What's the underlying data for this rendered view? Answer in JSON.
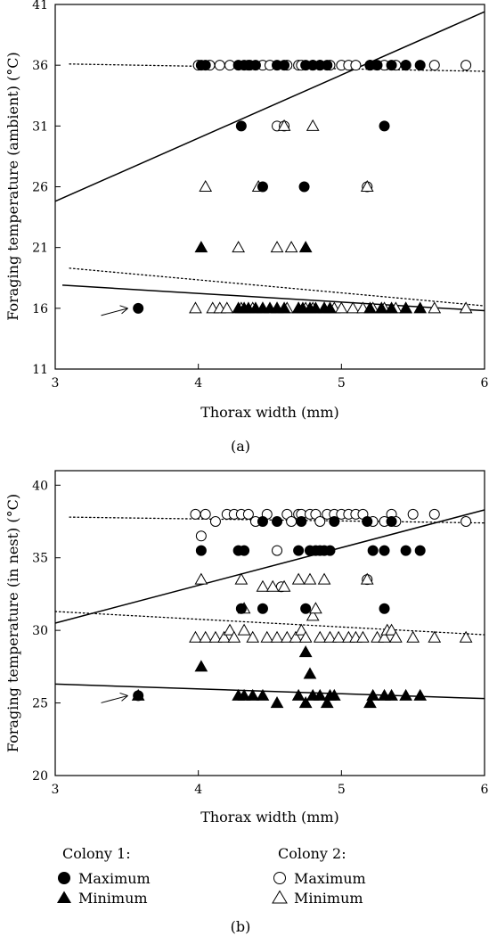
{
  "figure": {
    "panels": [
      {
        "label": "(a)",
        "xlabel": "Thorax width (mm)",
        "ylabel": "Foraging temperature (ambient) (°C)"
      },
      {
        "label": "(b)",
        "xlabel": "Thorax width (mm)",
        "ylabel": "Foraging temperature (in nest) (°C)"
      }
    ],
    "legend": {
      "colony1_title": "Colony 1:",
      "colony2_title": "Colony 2:",
      "c1_max": "Maximum",
      "c1_min": "Minimum",
      "c2_max": "Maximum",
      "c2_min": "Minimum"
    }
  },
  "chart_data": [
    {
      "type": "scatter",
      "label": "(a)",
      "xlabel": "Thorax width (mm)",
      "ylabel": "Foraging temperature (ambient) (°C)",
      "xlim": [
        3,
        6
      ],
      "ylim": [
        11,
        41
      ],
      "xticks": [
        3,
        4,
        5,
        6
      ],
      "yticks": [
        11,
        16,
        21,
        26,
        31,
        36,
        41
      ],
      "series": [
        {
          "key": "c1max",
          "points": [
            [
              3.58,
              16
            ],
            [
              4.02,
              36
            ],
            [
              4.05,
              36
            ],
            [
              4.28,
              36
            ],
            [
              4.3,
              31
            ],
            [
              4.32,
              36
            ],
            [
              4.36,
              36
            ],
            [
              4.4,
              36
            ],
            [
              4.45,
              26
            ],
            [
              4.55,
              36
            ],
            [
              4.6,
              36
            ],
            [
              4.74,
              26
            ],
            [
              4.75,
              36
            ],
            [
              4.8,
              36
            ],
            [
              4.85,
              36
            ],
            [
              4.9,
              36
            ],
            [
              5.2,
              36
            ],
            [
              5.25,
              36
            ],
            [
              5.3,
              31
            ],
            [
              5.35,
              36
            ],
            [
              5.45,
              36
            ],
            [
              5.55,
              36
            ]
          ]
        },
        {
          "key": "c1min",
          "points": [
            [
              4.02,
              21
            ],
            [
              4.28,
              16
            ],
            [
              4.32,
              16
            ],
            [
              4.35,
              16
            ],
            [
              4.4,
              16
            ],
            [
              4.45,
              16
            ],
            [
              4.5,
              16
            ],
            [
              4.55,
              16
            ],
            [
              4.6,
              16
            ],
            [
              4.7,
              16
            ],
            [
              4.73,
              16
            ],
            [
              4.75,
              21
            ],
            [
              4.78,
              16
            ],
            [
              4.82,
              16
            ],
            [
              4.88,
              16
            ],
            [
              4.92,
              16
            ],
            [
              5.2,
              16
            ],
            [
              5.28,
              16
            ],
            [
              5.35,
              16
            ],
            [
              5.45,
              16
            ],
            [
              5.55,
              16
            ]
          ]
        },
        {
          "key": "c2max",
          "points": [
            [
              4.0,
              36
            ],
            [
              4.08,
              36
            ],
            [
              4.15,
              36
            ],
            [
              4.22,
              36
            ],
            [
              4.35,
              36
            ],
            [
              4.45,
              36
            ],
            [
              4.5,
              36
            ],
            [
              4.55,
              31
            ],
            [
              4.6,
              31
            ],
            [
              4.62,
              36
            ],
            [
              4.7,
              36
            ],
            [
              4.72,
              36
            ],
            [
              4.8,
              36
            ],
            [
              4.85,
              36
            ],
            [
              4.92,
              36
            ],
            [
              5.0,
              36
            ],
            [
              5.05,
              36
            ],
            [
              5.1,
              36
            ],
            [
              5.18,
              26
            ],
            [
              5.2,
              36
            ],
            [
              5.3,
              36
            ],
            [
              5.38,
              36
            ],
            [
              5.45,
              36
            ],
            [
              5.65,
              36
            ],
            [
              5.87,
              36
            ]
          ]
        },
        {
          "key": "c2min",
          "points": [
            [
              3.98,
              16
            ],
            [
              4.05,
              26
            ],
            [
              4.1,
              16
            ],
            [
              4.15,
              16
            ],
            [
              4.2,
              16
            ],
            [
              4.28,
              21
            ],
            [
              4.3,
              16
            ],
            [
              4.38,
              16
            ],
            [
              4.42,
              26
            ],
            [
              4.45,
              16
            ],
            [
              4.55,
              21
            ],
            [
              4.55,
              16
            ],
            [
              4.6,
              31
            ],
            [
              4.62,
              16
            ],
            [
              4.65,
              21
            ],
            [
              4.7,
              16
            ],
            [
              4.75,
              16
            ],
            [
              4.8,
              31
            ],
            [
              4.8,
              16
            ],
            [
              4.88,
              16
            ],
            [
              4.95,
              16
            ],
            [
              5.0,
              16
            ],
            [
              5.08,
              16
            ],
            [
              5.15,
              16
            ],
            [
              5.18,
              26
            ],
            [
              5.22,
              16
            ],
            [
              5.3,
              16
            ],
            [
              5.38,
              16
            ],
            [
              5.45,
              16
            ],
            [
              5.65,
              16
            ],
            [
              5.87,
              16
            ]
          ]
        }
      ],
      "lines": [
        {
          "style": "solid",
          "x": [
            3,
            6
          ],
          "y": [
            24.8,
            40.4
          ]
        },
        {
          "style": "dotted",
          "x": [
            3.1,
            6
          ],
          "y": [
            36.1,
            35.5
          ]
        },
        {
          "style": "solid",
          "x": [
            3.05,
            6
          ],
          "y": [
            17.9,
            15.8
          ]
        },
        {
          "style": "dotted",
          "x": [
            3.1,
            6
          ],
          "y": [
            19.3,
            16.2
          ]
        }
      ],
      "arrow_at": [
        3.52,
        16
      ]
    },
    {
      "type": "scatter",
      "label": "(b)",
      "xlabel": "Thorax width (mm)",
      "ylabel": "Foraging temperature (in nest) (°C)",
      "xlim": [
        3,
        6
      ],
      "ylim": [
        20,
        41
      ],
      "xticks": [
        3,
        4,
        5,
        6
      ],
      "yticks": [
        20,
        25,
        30,
        35,
        40
      ],
      "series": [
        {
          "key": "c1max",
          "points": [
            [
              3.58,
              25.5
            ],
            [
              4.02,
              35.5
            ],
            [
              4.28,
              35.5
            ],
            [
              4.32,
              35.5
            ],
            [
              4.3,
              31.5
            ],
            [
              4.45,
              31.5
            ],
            [
              4.45,
              37.5
            ],
            [
              4.55,
              37.5
            ],
            [
              4.7,
              35.5
            ],
            [
              4.72,
              37.5
            ],
            [
              4.75,
              31.5
            ],
            [
              4.78,
              35.5
            ],
            [
              4.82,
              35.5
            ],
            [
              4.85,
              35.5
            ],
            [
              4.88,
              35.5
            ],
            [
              4.92,
              35.5
            ],
            [
              4.95,
              37.5
            ],
            [
              5.18,
              37.5
            ],
            [
              5.22,
              35.5
            ],
            [
              5.3,
              31.5
            ],
            [
              5.3,
              35.5
            ],
            [
              5.35,
              37.5
            ],
            [
              5.45,
              35.5
            ],
            [
              5.55,
              35.5
            ]
          ]
        },
        {
          "key": "c1min",
          "points": [
            [
              3.58,
              25.5
            ],
            [
              4.02,
              27.5
            ],
            [
              4.28,
              25.5
            ],
            [
              4.32,
              25.5
            ],
            [
              4.38,
              25.5
            ],
            [
              4.45,
              25.5
            ],
            [
              4.55,
              25.0
            ],
            [
              4.7,
              25.5
            ],
            [
              4.75,
              25.0
            ],
            [
              4.75,
              28.5
            ],
            [
              4.78,
              27.0
            ],
            [
              4.8,
              25.5
            ],
            [
              4.85,
              25.5
            ],
            [
              4.9,
              25.0
            ],
            [
              4.92,
              25.5
            ],
            [
              4.95,
              25.5
            ],
            [
              5.2,
              25.0
            ],
            [
              5.22,
              25.5
            ],
            [
              5.3,
              25.5
            ],
            [
              5.35,
              25.5
            ],
            [
              5.45,
              25.5
            ],
            [
              5.55,
              25.5
            ]
          ]
        },
        {
          "key": "c2max",
          "points": [
            [
              3.98,
              38
            ],
            [
              4.02,
              36.5
            ],
            [
              4.05,
              38
            ],
            [
              4.12,
              37.5
            ],
            [
              4.2,
              38
            ],
            [
              4.25,
              38
            ],
            [
              4.3,
              38
            ],
            [
              4.35,
              38
            ],
            [
              4.4,
              37.5
            ],
            [
              4.48,
              38
            ],
            [
              4.55,
              35.5
            ],
            [
              4.58,
              33
            ],
            [
              4.62,
              38
            ],
            [
              4.65,
              37.5
            ],
            [
              4.7,
              38
            ],
            [
              4.72,
              38
            ],
            [
              4.78,
              38
            ],
            [
              4.82,
              38
            ],
            [
              4.85,
              37.5
            ],
            [
              4.9,
              38
            ],
            [
              4.95,
              38
            ],
            [
              5.0,
              38
            ],
            [
              5.05,
              38
            ],
            [
              5.1,
              38
            ],
            [
              5.15,
              38
            ],
            [
              5.18,
              33.5
            ],
            [
              5.22,
              37.5
            ],
            [
              5.3,
              37.5
            ],
            [
              5.35,
              38
            ],
            [
              5.38,
              37.5
            ],
            [
              5.5,
              38
            ],
            [
              5.65,
              38
            ],
            [
              5.87,
              37.5
            ]
          ]
        },
        {
          "key": "c2min",
          "points": [
            [
              3.98,
              29.5
            ],
            [
              4.02,
              33.5
            ],
            [
              4.05,
              29.5
            ],
            [
              4.12,
              29.5
            ],
            [
              4.18,
              29.5
            ],
            [
              4.22,
              30
            ],
            [
              4.25,
              29.5
            ],
            [
              4.3,
              33.5
            ],
            [
              4.32,
              31.5
            ],
            [
              4.32,
              30
            ],
            [
              4.38,
              29.5
            ],
            [
              4.45,
              33
            ],
            [
              4.48,
              29.5
            ],
            [
              4.52,
              33
            ],
            [
              4.55,
              29.5
            ],
            [
              4.6,
              33
            ],
            [
              4.62,
              29.5
            ],
            [
              4.68,
              29.5
            ],
            [
              4.7,
              33.5
            ],
            [
              4.72,
              30
            ],
            [
              4.75,
              29.5
            ],
            [
              4.78,
              33.5
            ],
            [
              4.8,
              31
            ],
            [
              4.82,
              31.5
            ],
            [
              4.85,
              29.5
            ],
            [
              4.88,
              33.5
            ],
            [
              4.92,
              29.5
            ],
            [
              4.98,
              29.5
            ],
            [
              5.05,
              29.5
            ],
            [
              5.1,
              29.5
            ],
            [
              5.15,
              29.5
            ],
            [
              5.18,
              33.5
            ],
            [
              5.25,
              29.5
            ],
            [
              5.3,
              29.5
            ],
            [
              5.32,
              30
            ],
            [
              5.35,
              30
            ],
            [
              5.38,
              29.5
            ],
            [
              5.5,
              29.5
            ],
            [
              5.65,
              29.5
            ],
            [
              5.87,
              29.5
            ]
          ]
        }
      ],
      "lines": [
        {
          "style": "solid",
          "x": [
            3,
            6
          ],
          "y": [
            30.5,
            38.3
          ]
        },
        {
          "style": "dotted",
          "x": [
            3.1,
            6
          ],
          "y": [
            37.8,
            37.4
          ]
        },
        {
          "style": "solid",
          "x": [
            3,
            6
          ],
          "y": [
            26.3,
            25.3
          ]
        },
        {
          "style": "dotted",
          "x": [
            3,
            6
          ],
          "y": [
            31.3,
            29.7
          ]
        }
      ],
      "arrow_at": [
        3.52,
        25.5
      ]
    }
  ]
}
